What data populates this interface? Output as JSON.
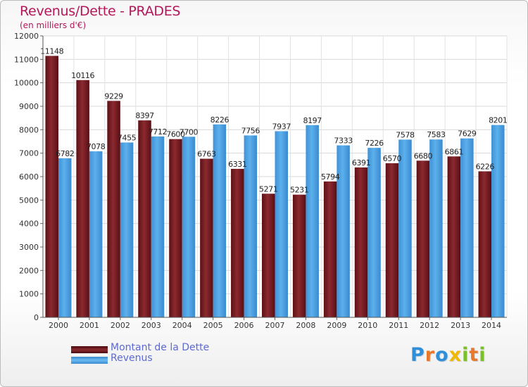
{
  "chart_data": {
    "type": "bar",
    "title": "Revenus/Dette - PRADES",
    "subtitle": "(en milliers d'€)",
    "categories": [
      "2000",
      "2001",
      "2002",
      "2003",
      "2004",
      "2005",
      "2006",
      "2007",
      "2008",
      "2009",
      "2010",
      "2011",
      "2012",
      "2013",
      "2014"
    ],
    "series": [
      {
        "name": "Montant de la Dette",
        "color": "#7a1f24",
        "values": [
          11148,
          10116,
          9229,
          8397,
          7600,
          6763,
          6331,
          5271,
          5231,
          5794,
          6391,
          6570,
          6680,
          6861,
          6226
        ],
        "labels": [
          "11148",
          "10116",
          "9229",
          "8397",
          "7600",
          "6763",
          "6331",
          "5271",
          "5231",
          "5794",
          "6391",
          "6570",
          "6680",
          "6861",
          "6226"
        ]
      },
      {
        "name": "Revenus",
        "color": "#4da0e0",
        "values": [
          6782,
          7078,
          7455,
          7712,
          7700,
          8226,
          7756,
          7937,
          8197,
          7333,
          7226,
          7578,
          7583,
          7629,
          8201
        ],
        "labels": [
          "6782",
          "7078",
          "7455",
          "7712",
          "7700",
          "8226",
          "7756",
          "7937",
          "8197",
          "7333",
          "7226",
          "7578",
          "7583",
          "7629",
          "8201"
        ]
      }
    ],
    "yticks": [
      "0",
      "1000",
      "2000",
      "3000",
      "4000",
      "5000",
      "6000",
      "7000",
      "8000",
      "9000",
      "10000",
      "11000",
      "12000"
    ],
    "ylim": [
      0,
      12000
    ],
    "grid": true,
    "legend_position": "bottom-left"
  },
  "logo": {
    "text": "Proxiti",
    "letters": [
      {
        "ch": "P",
        "color": "#2f8fd8"
      },
      {
        "ch": "r",
        "color": "#e8792c"
      },
      {
        "ch": "o",
        "color": "#2f8fd8"
      },
      {
        "ch": "x",
        "color": "#f0b800"
      },
      {
        "ch": "i",
        "color": "#7bbf2a"
      },
      {
        "ch": "t",
        "color": "#e8792c"
      },
      {
        "ch": "i",
        "color": "#7bbf2a"
      }
    ]
  }
}
